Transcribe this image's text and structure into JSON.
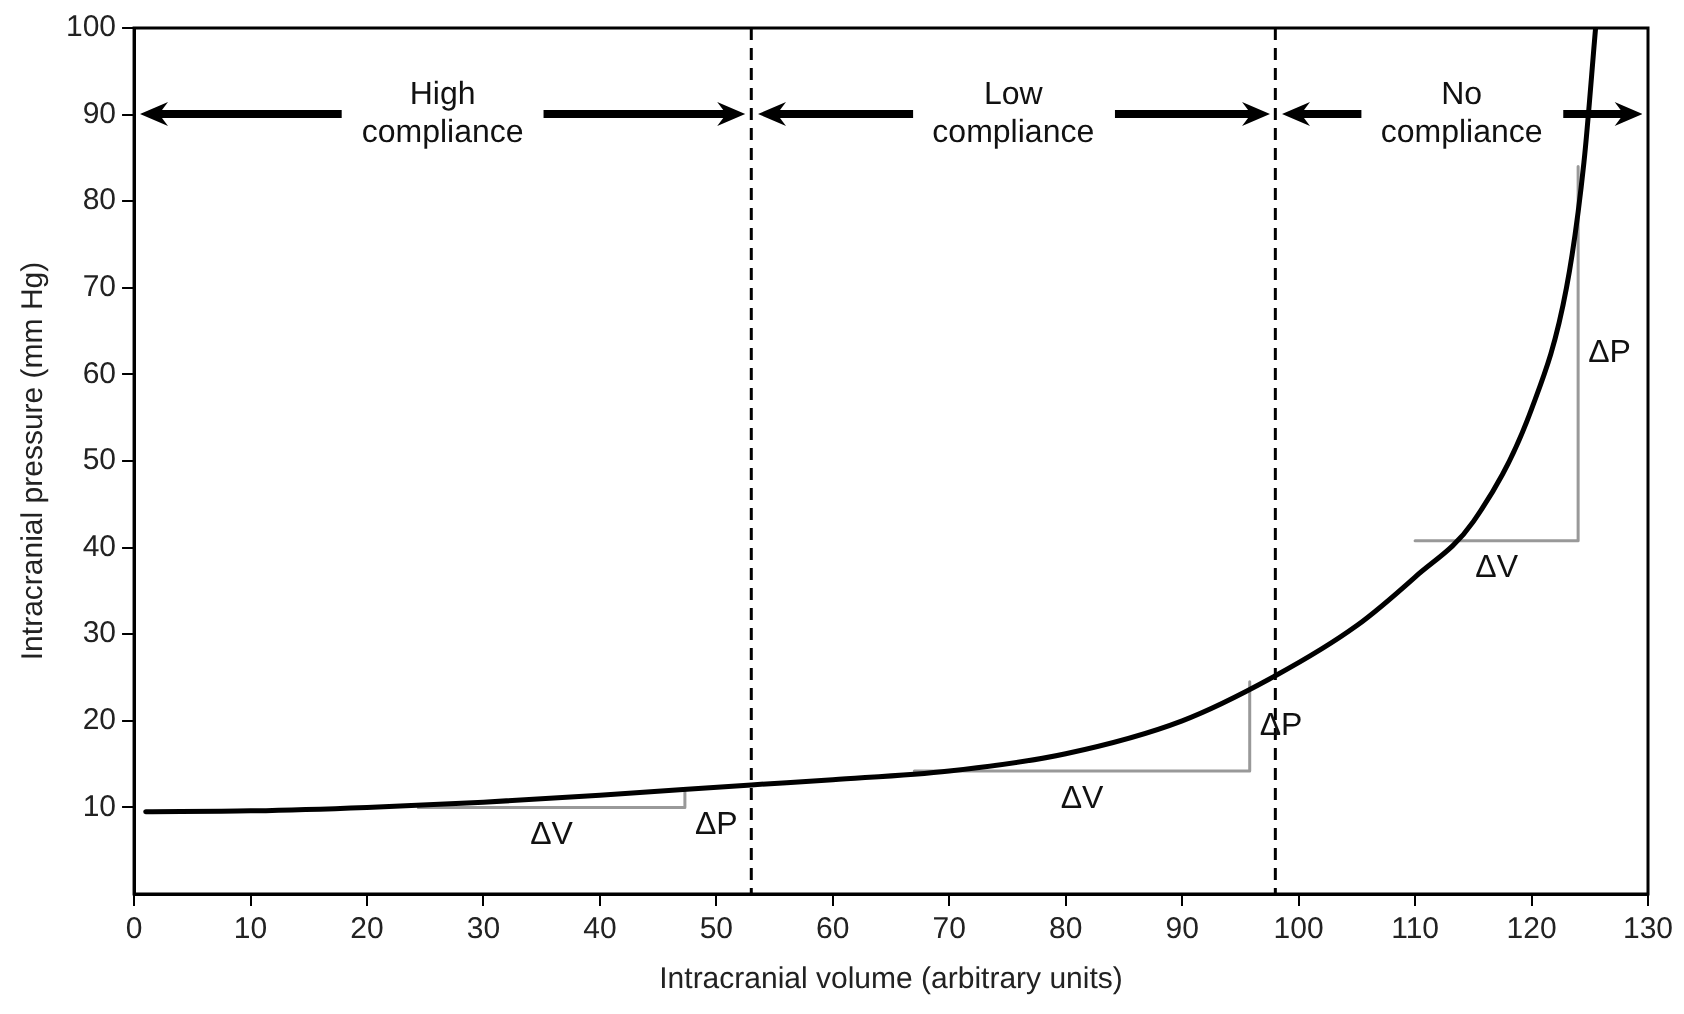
{
  "chart_data": {
    "type": "line",
    "xlabel": "Intracranial volume (arbitrary units)",
    "ylabel": "Intracranial pressure (mm Hg)",
    "xlim": [
      0,
      130
    ],
    "xticks": [
      0,
      10,
      20,
      30,
      40,
      50,
      60,
      70,
      80,
      90,
      100,
      110,
      120,
      130
    ],
    "ylim": [
      0,
      100
    ],
    "yticks": [
      10,
      20,
      30,
      40,
      50,
      60,
      70,
      80,
      90,
      100
    ],
    "grid": false,
    "legend": false,
    "marker": "none",
    "line_style": "solid",
    "series": [
      {
        "color": "#000000",
        "x": [
          1,
          10,
          20,
          30,
          40,
          53,
          60,
          70,
          80,
          90,
          98,
          105,
          110,
          115,
          120,
          123,
          124.5,
          125.5
        ],
        "values": [
          9.5,
          9.6,
          10,
          10.6,
          11.4,
          12.6,
          13.2,
          14.2,
          16.2,
          20,
          25.2,
          31,
          36.6,
          43,
          56,
          70,
          84.5,
          100
        ]
      },
      {
        "color": "#999999",
        "x": [
          24.4,
          47.3,
          47.3
        ],
        "values": [
          10,
          10,
          11.8
        ]
      },
      {
        "color": "#999999",
        "x": [
          67,
          95.8,
          95.8
        ],
        "values": [
          14.2,
          14.2,
          24.5
        ]
      },
      {
        "color": "#999999",
        "x": [
          110,
          124,
          124
        ],
        "values": [
          40.8,
          40.8,
          84
        ]
      }
    ],
    "ref_lines": [
      {
        "axis": "x",
        "value": 53,
        "color": "#000000",
        "line_style": "dashed"
      },
      {
        "axis": "x",
        "value": 98,
        "color": "#000000",
        "line_style": "dashed"
      }
    ],
    "annotations": [
      "High compliance",
      "Low compliance",
      "No compliance",
      "ΔV",
      "ΔP",
      "ΔV",
      "ΔP",
      "ΔV",
      "ΔP"
    ]
  }
}
